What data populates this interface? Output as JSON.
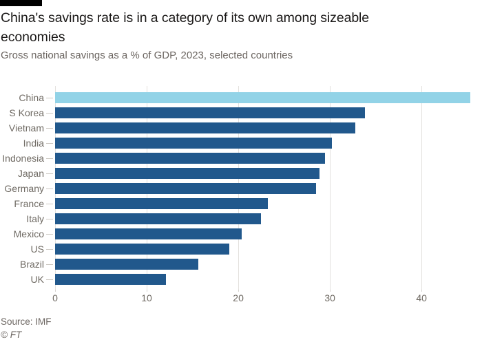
{
  "chart_data": {
    "type": "bar",
    "orientation": "horizontal",
    "title": "China's savings rate is in a category of its own among sizeable economies",
    "subtitle": "Gross national savings as a % of GDP, 2023, selected countries",
    "categories": [
      "China",
      "S Korea",
      "Vietnam",
      "India",
      "Indonesia",
      "Japan",
      "Germany",
      "France",
      "Italy",
      "Mexico",
      "US",
      "Brazil",
      "UK"
    ],
    "values": [
      45.3,
      33.8,
      32.8,
      30.2,
      29.5,
      28.9,
      28.5,
      23.2,
      22.5,
      20.4,
      19.0,
      15.6,
      12.1
    ],
    "xlabel": "",
    "ylabel": "",
    "xticks": [
      0,
      10,
      20,
      30,
      40
    ],
    "xlim": [
      0,
      45.4
    ],
    "grid": "vertical-only",
    "legend": "none",
    "highlight_category": "China",
    "colors": {
      "highlight": "#92d3e7",
      "default": "#21588c",
      "top_rule": "#000000",
      "gridline": "#e3e1de",
      "text_gray": "#6b6560"
    }
  },
  "footer": {
    "source": "Source: IMF",
    "copyright": "© FT"
  }
}
